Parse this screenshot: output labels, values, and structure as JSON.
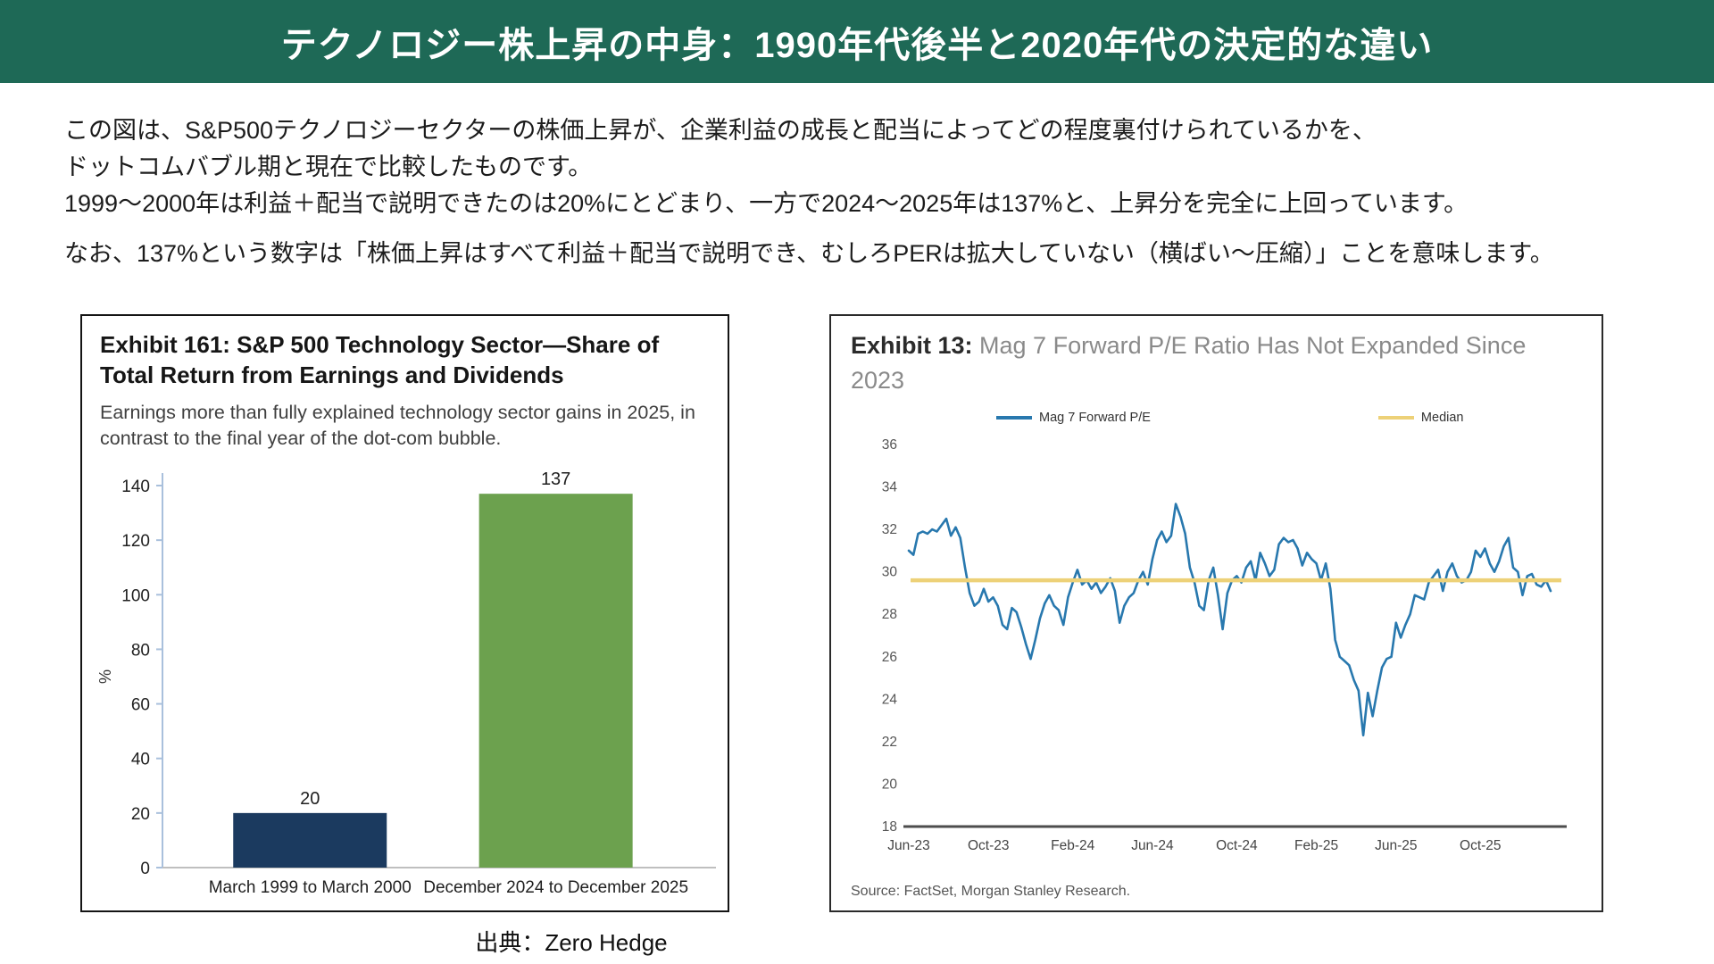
{
  "banner": {
    "title": "テクノロジー株上昇の中身：1990年代後半と2020年代の決定的な違い",
    "bg_color": "#1E6956"
  },
  "intro": {
    "lines": [
      "この図は、S&P500テクノロジーセクターの株価上昇が、企業利益の成長と配当によってどの程度裏付けられているかを、",
      "ドットコムバブル期と現在で比較したものです。",
      "1999〜2000年は利益＋配当で説明できたのは20%にとどまり、一方で2024〜2025年は137%と、上昇分を完全に上回っています。",
      "なお、137%という数字は「株価上昇はすべて利益＋配当で説明でき、むしろPERは拡大していない（横ばい〜圧縮）」ことを意味します。"
    ]
  },
  "left_panel": {
    "title": "Exhibit 161: S&P 500 Technology Sector—Share of Total Return from Earnings and Dividends",
    "subtitle": "Earnings more than fully explained technology sector gains in 2025, in contrast to the final year of the dot-com bubble."
  },
  "right_panel": {
    "exhibit_label": "Exhibit 13:",
    "title_rest": " Mag 7 Forward P/E Ratio Has Not Expanded Since 2023",
    "legend": [
      {
        "label": "Mag 7 Forward P/E",
        "color": "#2878AE"
      },
      {
        "label": "Median",
        "color": "#EDD178"
      }
    ],
    "source": "Source: FactSet, Morgan Stanley Research."
  },
  "caption": "出典：Zero Hedge",
  "chart_data": [
    {
      "type": "bar",
      "title": "Exhibit 161: S&P 500 Technology Sector—Share of Total Return from Earnings and Dividends",
      "subtitle": "Earnings more than fully explained technology sector gains in 2025, in contrast to the final year of the dot-com bubble.",
      "categories": [
        "March 1999 to March 2000",
        "December 2024 to December 2025"
      ],
      "values": [
        20,
        137
      ],
      "bar_colors": [
        "#1B3A5F",
        "#6CA14E"
      ],
      "xlabel": "",
      "ylabel": "%",
      "ylim": [
        0,
        140
      ],
      "ytick_step": 20,
      "grid": false,
      "legend_position": "none"
    },
    {
      "type": "line",
      "title": "Exhibit 13: Mag 7 Forward P/E Ratio Has Not Expanded Since 2023",
      "x_tick_labels": [
        "Jun-23",
        "Oct-23",
        "Feb-24",
        "Jun-24",
        "Oct-24",
        "Feb-25",
        "Jun-25",
        "Oct-25"
      ],
      "x_tick_indices": [
        0,
        17,
        35,
        52,
        70,
        87,
        104,
        122
      ],
      "ylim": [
        18,
        36
      ],
      "ytick_step": 2,
      "grid": false,
      "legend_position": "top",
      "series": [
        {
          "name": "Mag 7 Forward P/E",
          "color": "#2878AE",
          "values": [
            31.0,
            30.8,
            31.8,
            31.9,
            31.8,
            32.0,
            31.9,
            32.2,
            32.5,
            31.7,
            32.1,
            31.6,
            30.2,
            29.0,
            28.4,
            28.6,
            29.2,
            28.6,
            28.8,
            28.4,
            27.5,
            27.3,
            28.3,
            28.1,
            27.4,
            26.6,
            25.9,
            26.8,
            27.8,
            28.5,
            28.9,
            28.4,
            28.2,
            27.5,
            28.8,
            29.5,
            30.1,
            29.4,
            29.6,
            29.2,
            29.5,
            29.0,
            29.3,
            29.7,
            29.1,
            27.6,
            28.4,
            28.8,
            29.0,
            29.6,
            30.0,
            29.4,
            30.6,
            31.5,
            31.9,
            31.4,
            31.7,
            33.2,
            32.6,
            31.8,
            30.2,
            29.5,
            28.4,
            28.2,
            29.6,
            30.2,
            28.9,
            27.3,
            29.0,
            29.6,
            29.8,
            29.5,
            30.2,
            30.5,
            29.6,
            30.9,
            30.4,
            29.8,
            30.1,
            31.3,
            31.6,
            31.4,
            31.5,
            31.1,
            30.3,
            30.9,
            30.6,
            30.4,
            29.6,
            30.4,
            29.2,
            26.8,
            26.0,
            25.8,
            25.6,
            24.9,
            24.4,
            22.3,
            24.3,
            23.2,
            24.4,
            25.5,
            25.9,
            26.0,
            27.6,
            26.9,
            27.5,
            28.0,
            28.9,
            28.8,
            28.7,
            29.5,
            29.8,
            30.1,
            29.1,
            30.0,
            30.4,
            29.8,
            29.5,
            29.6,
            30.0,
            31.0,
            30.7,
            31.1,
            30.4,
            30.0,
            30.5,
            31.2,
            31.6,
            30.2,
            30.0,
            28.9,
            29.8,
            29.9,
            29.4,
            29.3,
            29.6,
            29.1
          ]
        },
        {
          "name": "Median",
          "color": "#EDD178",
          "value": 29.6
        }
      ],
      "source": "Source: FactSet, Morgan Stanley Research."
    }
  ]
}
